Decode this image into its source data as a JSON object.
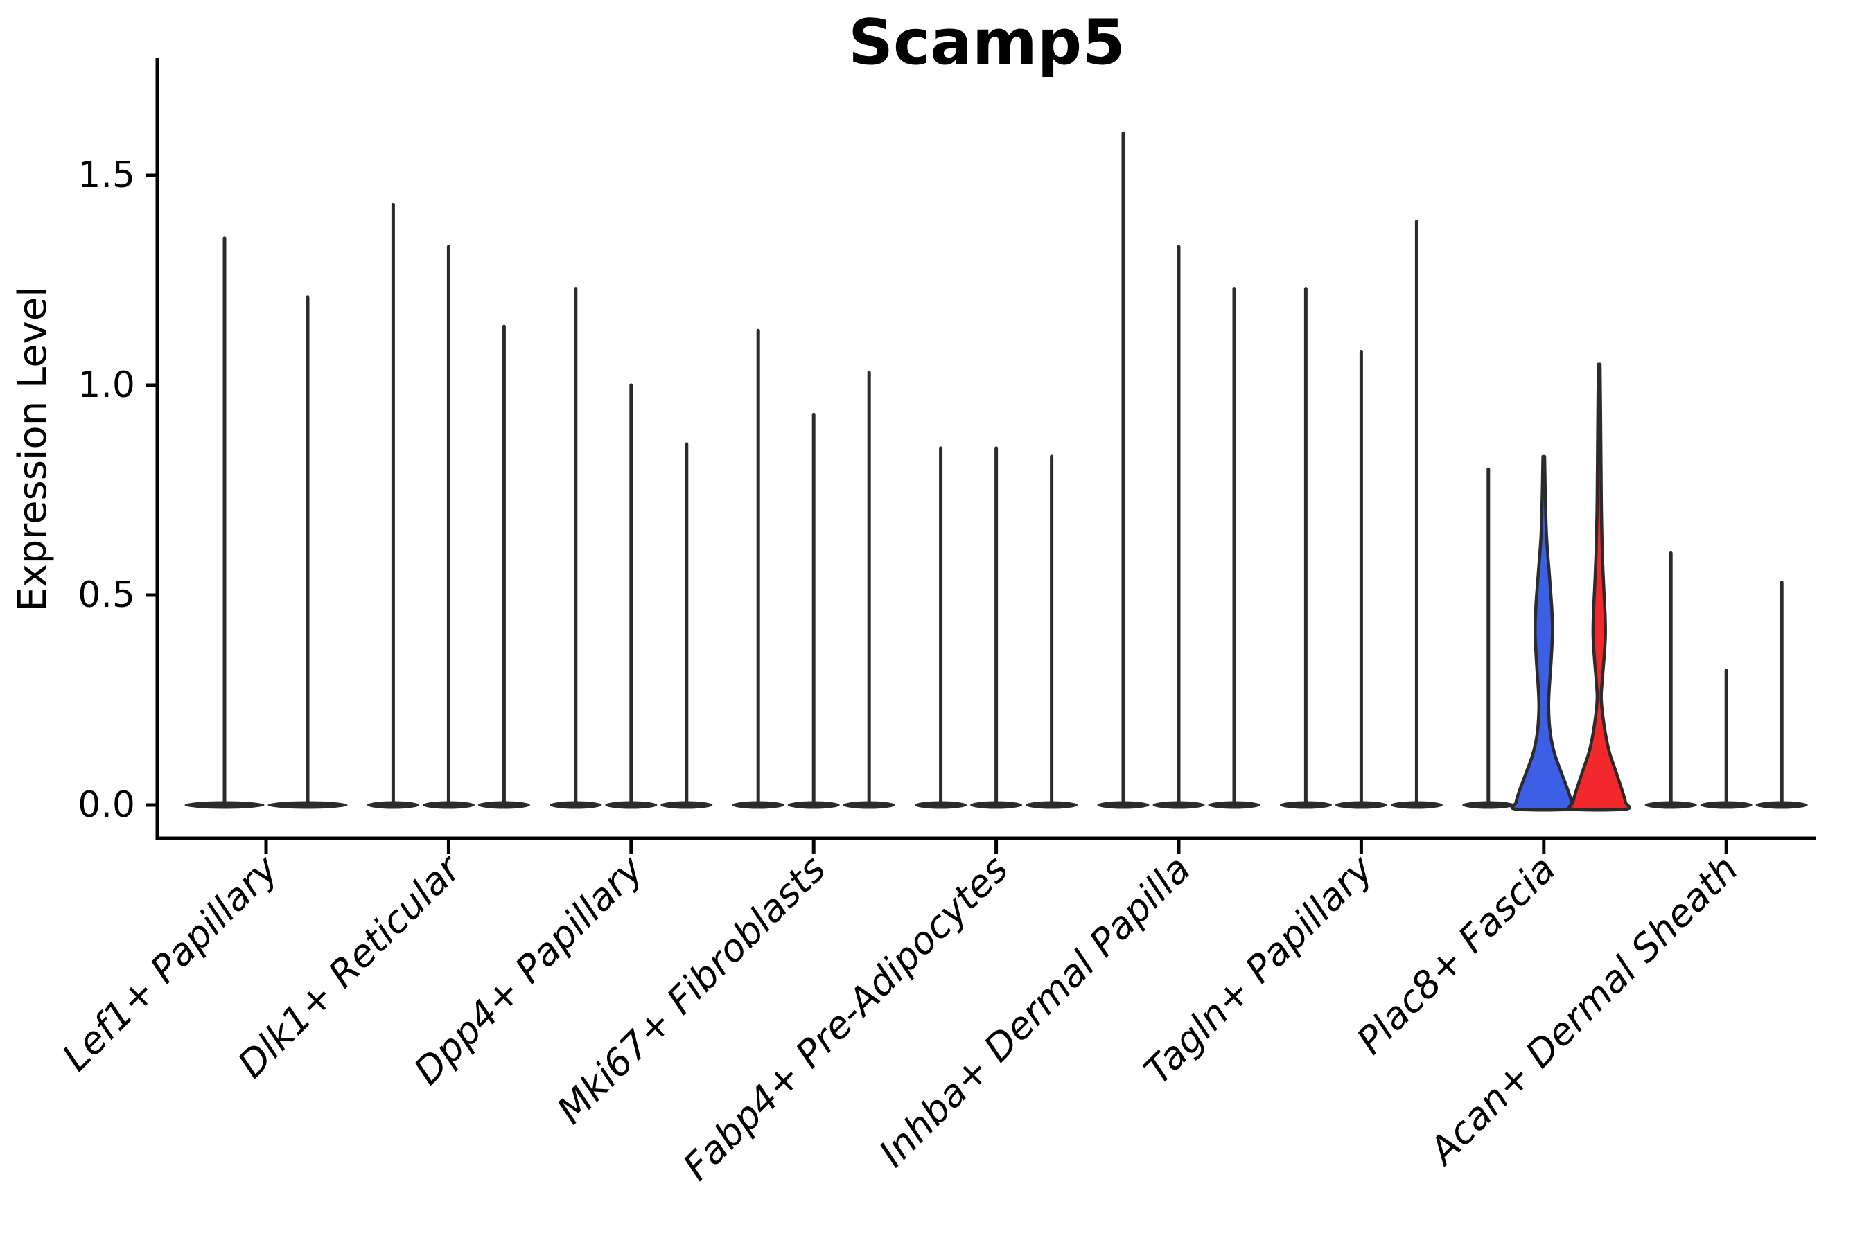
{
  "figure": {
    "title": "Scamp5",
    "y_axis": {
      "label": "Expression Level",
      "tick_labels": [
        "0.0",
        "0.5",
        "1.0",
        "1.5"
      ]
    },
    "x_axis": {
      "label": ""
    }
  },
  "chart_data": {
    "type": "violin",
    "title": "Scamp5",
    "xlabel": "",
    "ylabel": "Expression Level",
    "ylim": [
      0,
      1.75
    ],
    "yticks": [
      0.0,
      0.5,
      1.0,
      1.5
    ],
    "ytick_labels": [
      "0.0",
      "0.5",
      "1.0",
      "1.5"
    ],
    "grid": false,
    "legend": "none",
    "categories": [
      "Lef1+ Papillary",
      "Dlk1+ Reticular",
      "Dpp4+ Papillary",
      "Mki67+ Fibroblasts",
      "Fabp4+ Pre-Adipocytes",
      "Inhba+ Dermal Papilla",
      "Tagln+ Papillary",
      "Plac8+ Fascia",
      "Acan+ Dermal Sheath"
    ],
    "groups": [
      {
        "category": "Lef1+ Papillary",
        "violins": [
          {
            "max": 1.35,
            "style": "collapsed"
          },
          {
            "max": 1.21,
            "style": "collapsed"
          }
        ]
      },
      {
        "category": "Dlk1+ Reticular",
        "violins": [
          {
            "max": 1.43,
            "style": "collapsed"
          },
          {
            "max": 1.33,
            "style": "collapsed"
          },
          {
            "max": 1.14,
            "style": "collapsed"
          }
        ]
      },
      {
        "category": "Dpp4+ Papillary",
        "violins": [
          {
            "max": 1.23,
            "style": "collapsed"
          },
          {
            "max": 1.0,
            "style": "collapsed"
          },
          {
            "max": 0.86,
            "style": "collapsed"
          }
        ]
      },
      {
        "category": "Mki67+ Fibroblasts",
        "violins": [
          {
            "max": 1.13,
            "style": "collapsed"
          },
          {
            "max": 0.93,
            "style": "collapsed"
          },
          {
            "max": 1.03,
            "style": "collapsed"
          }
        ]
      },
      {
        "category": "Fabp4+ Pre-Adipocytes",
        "violins": [
          {
            "max": 0.85,
            "style": "collapsed"
          },
          {
            "max": 0.85,
            "style": "collapsed"
          },
          {
            "max": 0.83,
            "style": "collapsed"
          }
        ]
      },
      {
        "category": "Inhba+ Dermal Papilla",
        "violins": [
          {
            "max": 1.6,
            "style": "collapsed"
          },
          {
            "max": 1.33,
            "style": "collapsed"
          },
          {
            "max": 1.23,
            "style": "collapsed"
          }
        ]
      },
      {
        "category": "Tagln+ Papillary",
        "violins": [
          {
            "max": 1.23,
            "style": "collapsed"
          },
          {
            "max": 1.08,
            "style": "collapsed"
          },
          {
            "max": 1.39,
            "style": "collapsed"
          }
        ]
      },
      {
        "category": "Plac8+ Fascia",
        "violins": [
          {
            "max": 0.8,
            "style": "collapsed"
          },
          {
            "max": 0.83,
            "style": "filled",
            "color_key": "blue",
            "profile": [
              [
                0.83,
                1.2
              ],
              [
                0.74,
                2.2
              ],
              [
                0.64,
                4.0
              ],
              [
                0.55,
                8.0
              ],
              [
                0.47,
                11.5
              ],
              [
                0.41,
                12.5
              ],
              [
                0.34,
                10.5
              ],
              [
                0.28,
                8.0
              ],
              [
                0.23,
                7.0
              ],
              [
                0.17,
                9.5
              ],
              [
                0.12,
                16.0
              ],
              [
                0.07,
                27.0
              ],
              [
                0.03,
                36.0
              ],
              [
                0.006,
                40.0
              ]
            ]
          },
          {
            "max": 1.05,
            "style": "filled",
            "color_key": "red",
            "profile": [
              [
                1.05,
                1.2
              ],
              [
                0.92,
                2.0
              ],
              [
                0.8,
                2.6
              ],
              [
                0.7,
                3.2
              ],
              [
                0.6,
                4.5
              ],
              [
                0.52,
                6.5
              ],
              [
                0.45,
                8.5
              ],
              [
                0.4,
                8.8
              ],
              [
                0.34,
                6.5
              ],
              [
                0.29,
                4.0
              ],
              [
                0.25,
                3.0
              ],
              [
                0.19,
                7.0
              ],
              [
                0.13,
                14.0
              ],
              [
                0.08,
                24.0
              ],
              [
                0.03,
                34.0
              ],
              [
                0.006,
                38.0
              ]
            ]
          }
        ]
      },
      {
        "category": "Acan+ Dermal Sheath",
        "violins": [
          {
            "max": 0.6,
            "style": "collapsed"
          },
          {
            "max": 0.32,
            "style": "collapsed"
          },
          {
            "max": 0.53,
            "style": "collapsed"
          }
        ]
      }
    ],
    "colors": {
      "blue": "#3C5FE6",
      "red": "#F3282D",
      "violin_stroke": "#2b2b2b",
      "axis": "#000000",
      "background": "#ffffff"
    }
  }
}
